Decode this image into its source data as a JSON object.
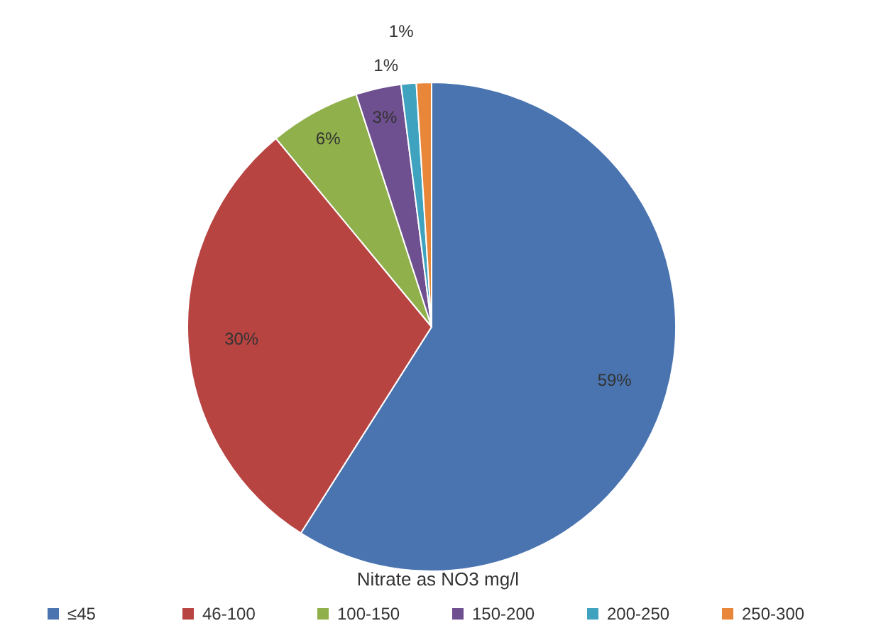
{
  "chart_data": {
    "type": "pie",
    "legend_title": "Nitrate as NO3 mg/l",
    "categories": [
      "≤45",
      "46-100",
      "100-150",
      "150-200",
      "200-250",
      "250-300"
    ],
    "values": [
      59,
      30,
      6,
      3,
      1,
      1
    ],
    "colors": [
      "#4a74b0",
      "#b84442",
      "#8fb04b",
      "#6e4f8f",
      "#3fa3c0",
      "#e8863a"
    ],
    "value_labels": [
      "59%",
      "30%",
      "6%",
      "3%",
      "1%",
      "1%"
    ],
    "legend": "bottom"
  }
}
